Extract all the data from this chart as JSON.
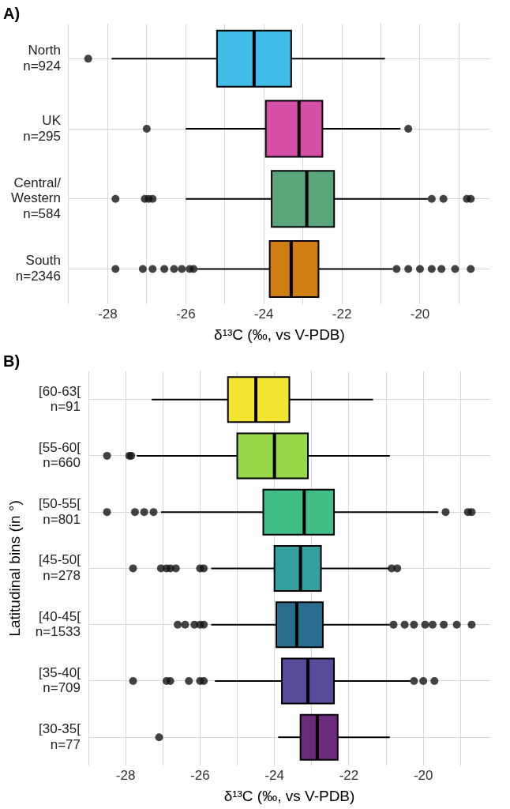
{
  "chart_data": [
    {
      "type": "box",
      "title": "A)",
      "orientation": "horizontal",
      "xlabel": "δ¹³C (‰, vs V-PDB)",
      "categories": [
        "North\nn=924",
        "UK\nn=295",
        "Central/\nWestern\nn=584",
        "South\nn=2346"
      ],
      "colors": [
        "#41bce9",
        "#d64fa7",
        "#5aa67a",
        "#cf7e13"
      ],
      "boxes": [
        {
          "low": -27.9,
          "q1": -25.2,
          "median": -24.25,
          "q3": -23.3,
          "high": -20.9,
          "outliers": [
            -28.5
          ]
        },
        {
          "low": -26.0,
          "q1": -23.95,
          "median": -23.1,
          "q3": -22.5,
          "high": -20.5,
          "outliers": [
            -27.0,
            -20.3
          ]
        },
        {
          "low": -26.0,
          "q1": -23.8,
          "median": -22.9,
          "q3": -22.2,
          "high": -19.8,
          "outliers": [
            -27.8,
            -27.05,
            -26.95,
            -26.85,
            -19.7,
            -19.4,
            -18.8,
            -18.7
          ]
        },
        {
          "low": -25.7,
          "q1": -23.85,
          "median": -23.3,
          "q3": -22.6,
          "high": -20.7,
          "outliers": [
            -27.8,
            -27.1,
            -26.85,
            -26.55,
            -26.3,
            -26.1,
            -25.9,
            -25.8,
            -20.6,
            -20.3,
            -20.0,
            -19.7,
            -19.45,
            -19.1,
            -18.7
          ]
        }
      ],
      "xlim": [
        -29,
        -18.2
      ],
      "xticks": [
        {
          "value": -29,
          "label": null
        },
        -28,
        {
          "value": -27,
          "label": null
        },
        -26,
        {
          "value": -25,
          "label": null
        },
        -24,
        {
          "value": -23,
          "label": null
        },
        -22,
        {
          "value": -21,
          "label": null
        },
        -20,
        {
          "value": -19,
          "label": null
        }
      ],
      "grid": true
    },
    {
      "type": "box",
      "title": "B)",
      "orientation": "horizontal",
      "xlabel": "δ¹³C (‰, vs V-PDB)",
      "ylabel": "Latitudinal bins (in °)",
      "categories": [
        "[60-63[\nn=91",
        "[55-60[\nn=660",
        "[50-55[\nn=801",
        "[45-50[\nn=278",
        "[40-45[\nn=1533",
        "[35-40[\nn=709",
        "[30-35[\nn=77"
      ],
      "colors": [
        "#f5e533",
        "#98d64a",
        "#3fbf86",
        "#35a0a0",
        "#2a6d8f",
        "#5a4a9a",
        "#6b2a7a"
      ],
      "boxes": [
        {
          "low": -27.3,
          "q1": -25.25,
          "median": -24.5,
          "q3": -23.6,
          "high": -21.35
        },
        {
          "low": -27.7,
          "q1": -25.0,
          "median": -24.0,
          "q3": -23.1,
          "high": -20.9,
          "outliers": [
            -28.5,
            -27.9,
            -27.85
          ]
        },
        {
          "low": -27.05,
          "q1": -24.3,
          "median": -23.2,
          "q3": -22.4,
          "high": -19.6,
          "outliers": [
            -28.5,
            -27.75,
            -27.5,
            -27.25,
            -19.4,
            -18.8,
            -18.7
          ]
        },
        {
          "low": -25.7,
          "q1": -24.0,
          "median": -23.3,
          "q3": -22.75,
          "high": -20.9,
          "outliers": [
            -27.8,
            -27.05,
            -26.9,
            -26.8,
            -26.65,
            -26.0,
            -25.9,
            -20.85,
            -20.7
          ]
        },
        {
          "low": -25.7,
          "q1": -23.95,
          "median": -23.4,
          "q3": -22.7,
          "high": -20.9,
          "outliers": [
            -26.6,
            -26.4,
            -26.15,
            -26.0,
            -25.9,
            -20.8,
            -20.5,
            -20.25,
            -19.95,
            -19.75,
            -19.45,
            -19.1,
            -18.7
          ]
        },
        {
          "low": -25.6,
          "q1": -23.8,
          "median": -23.1,
          "q3": -22.4,
          "high": -20.35,
          "outliers": [
            -27.8,
            -26.9,
            -26.8,
            -26.3,
            -26.0,
            -25.9,
            -20.25,
            -20.0,
            -19.7
          ]
        },
        {
          "low": -23.9,
          "q1": -23.3,
          "median": -22.85,
          "q3": -22.3,
          "high": -20.9,
          "outliers": [
            -27.1
          ]
        }
      ],
      "xlim": [
        -29,
        -18.2
      ],
      "xticks": [
        {
          "value": -29,
          "label": null
        },
        -28,
        {
          "value": -27,
          "label": null
        },
        -26,
        {
          "value": -25,
          "label": null
        },
        -24,
        {
          "value": -23,
          "label": null
        },
        -22,
        {
          "value": -21,
          "label": null
        },
        -20,
        {
          "value": -19,
          "label": null
        }
      ],
      "grid": true
    }
  ]
}
